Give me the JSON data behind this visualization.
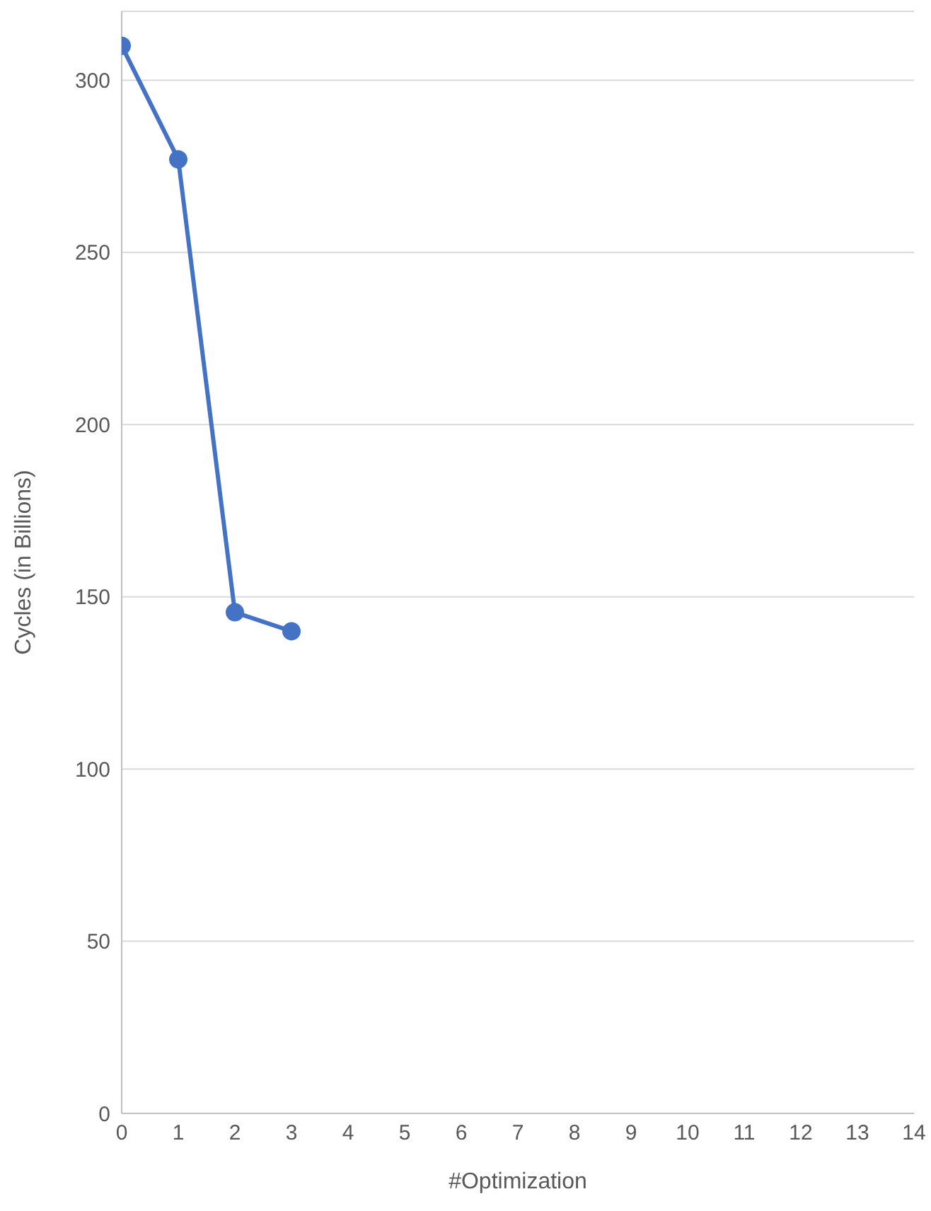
{
  "chart_data": {
    "type": "line",
    "xlabel": "#Optimization",
    "ylabel": "Cycles (in Billions)",
    "x": [
      0,
      1,
      2,
      3
    ],
    "series": [
      {
        "color": "#4472c4",
        "values": [
          310,
          277,
          145.5,
          140
        ]
      }
    ],
    "xlim": [
      0,
      14
    ],
    "xticks": [
      0,
      1,
      2,
      3,
      4,
      5,
      6,
      7,
      8,
      9,
      10,
      11,
      12,
      13,
      14
    ],
    "ylim": [
      0,
      320
    ],
    "yticks": [
      0,
      50,
      100,
      150,
      200,
      250,
      300
    ],
    "grid": "y",
    "marker": "circle",
    "legend": false
  }
}
